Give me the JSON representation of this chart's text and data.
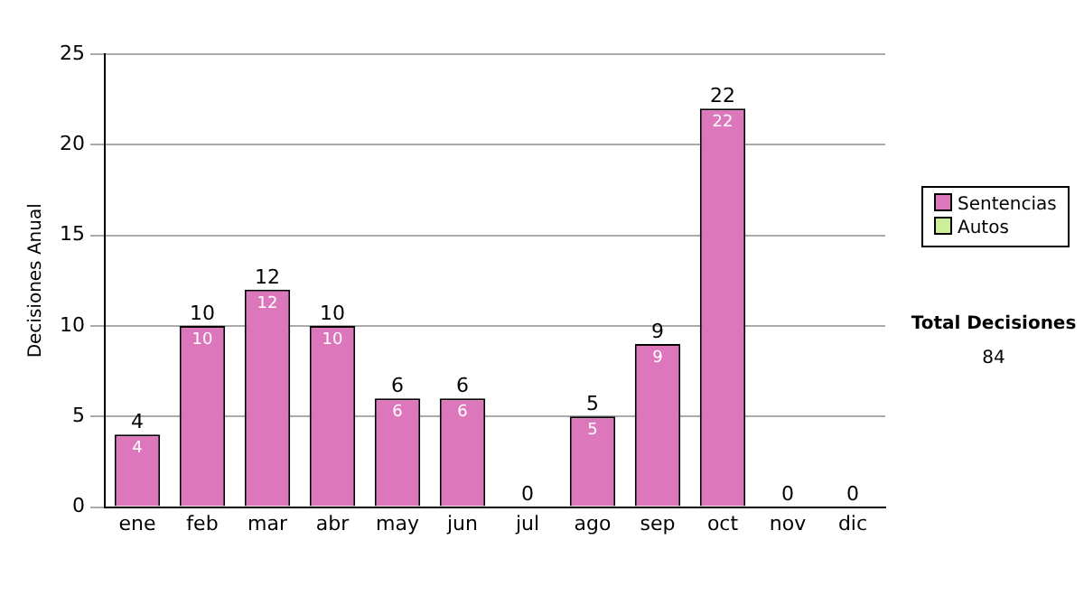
{
  "chart_data": {
    "type": "bar",
    "stacked": true,
    "ylabel": "Decisiones Anual",
    "categories": [
      "ene",
      "feb",
      "mar",
      "abr",
      "may",
      "jun",
      "jul",
      "ago",
      "sep",
      "oct",
      "nov",
      "dic"
    ],
    "series": [
      {
        "name": "Sentencias",
        "color": "#dd77bb",
        "values": [
          4,
          10,
          12,
          10,
          6,
          6,
          0,
          5,
          9,
          22,
          0,
          0
        ],
        "value_labels": [
          "4",
          "10",
          "12",
          "10",
          "6",
          "6",
          null,
          "5",
          "9",
          "22",
          null,
          null
        ]
      },
      {
        "name": "Autos",
        "color": "#ccee99",
        "values": [
          0,
          0,
          0,
          0,
          0,
          0,
          0,
          0,
          0,
          0,
          0,
          0
        ]
      }
    ],
    "totals": [
      "4",
      "10",
      "12",
      "10",
      "6",
      "6",
      "0",
      "5",
      "9",
      "22",
      "0",
      "0"
    ],
    "ylim": [
      0,
      25
    ],
    "yticks": [
      0,
      5,
      10,
      15,
      20,
      25
    ],
    "grid": "y",
    "legend": "right",
    "annotations": [
      "Total Decisiones",
      "84"
    ]
  }
}
